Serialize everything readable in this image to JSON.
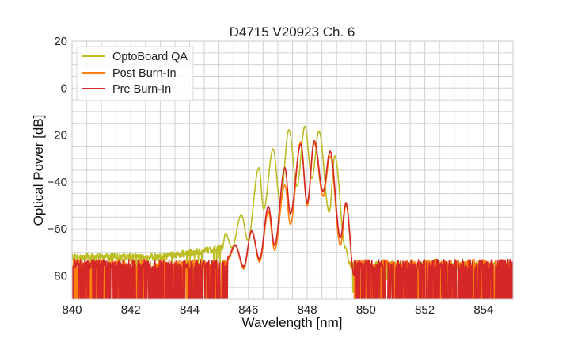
{
  "chart_data": {
    "type": "line",
    "title": "D4715 V20923 Ch. 6",
    "xlabel": "Wavelength [nm]",
    "ylabel": "Optical Power [dB]",
    "xlim": [
      840,
      855
    ],
    "ylim": [
      -90,
      20
    ],
    "xticks": [
      840,
      842,
      844,
      846,
      848,
      850,
      852,
      854
    ],
    "yticks": [
      -80,
      -60,
      -40,
      -20,
      0,
      20
    ],
    "xtick_labels": [
      "840",
      "842",
      "844",
      "846",
      "848",
      "850",
      "852",
      "854"
    ],
    "ytick_labels": [
      "−80",
      "−60",
      "−40",
      "−20",
      "0",
      "20"
    ],
    "grid": true,
    "legend_position": "top-left",
    "series": [
      {
        "name": "OptoBoard QA",
        "color": "#bcbd22",
        "noise_floor_left": [
          840,
          845.1,
          -72
        ],
        "noise_floor_right": [
          849.45,
          855,
          -75.5
        ],
        "points": [
          [
            845.1,
            -69
          ],
          [
            845.22,
            -62
          ],
          [
            845.44,
            -68
          ],
          [
            845.76,
            -54
          ],
          [
            845.98,
            -64.6
          ],
          [
            846.36,
            -34
          ],
          [
            846.52,
            -51.5
          ],
          [
            846.84,
            -26
          ],
          [
            847.08,
            -48.5
          ],
          [
            847.38,
            -17.8
          ],
          [
            847.65,
            -41.7
          ],
          [
            847.92,
            -16.4
          ],
          [
            848.16,
            -38.4
          ],
          [
            848.4,
            -18.4
          ],
          [
            848.75,
            -52.8
          ],
          [
            848.94,
            -29
          ],
          [
            849.3,
            -68
          ],
          [
            849.45,
            -75
          ]
        ]
      },
      {
        "name": "Post Burn-In",
        "color": "#ff7f0e",
        "noise_floor_left": [
          840,
          845.3,
          -75
        ],
        "noise_floor_right": [
          849.6,
          855,
          -75
        ],
        "points": [
          [
            845.3,
            -73
          ],
          [
            845.55,
            -67
          ],
          [
            845.84,
            -77
          ],
          [
            846.11,
            -61
          ],
          [
            846.38,
            -74
          ],
          [
            846.68,
            -52.8
          ],
          [
            846.89,
            -69
          ],
          [
            847.24,
            -41.4
          ],
          [
            847.43,
            -58
          ],
          [
            847.78,
            -23
          ],
          [
            848.0,
            -50
          ],
          [
            848.24,
            -23.5
          ],
          [
            848.54,
            -46
          ],
          [
            848.78,
            -29
          ],
          [
            849.13,
            -67
          ],
          [
            849.32,
            -50
          ],
          [
            849.6,
            -80
          ]
        ]
      },
      {
        "name": "Pre Burn-In",
        "color": "#d62728",
        "noise_floor_left": [
          840,
          845.3,
          -75
        ],
        "noise_floor_right": [
          849.6,
          855,
          -75
        ],
        "points": [
          [
            845.3,
            -72
          ],
          [
            845.55,
            -67
          ],
          [
            845.84,
            -76
          ],
          [
            846.11,
            -61
          ],
          [
            846.38,
            -72.7
          ],
          [
            846.68,
            -50.5
          ],
          [
            846.89,
            -67
          ],
          [
            847.24,
            -34
          ],
          [
            847.43,
            -53.5
          ],
          [
            847.78,
            -24
          ],
          [
            848.0,
            -49
          ],
          [
            848.24,
            -22.5
          ],
          [
            848.54,
            -44
          ],
          [
            848.78,
            -27
          ],
          [
            849.13,
            -63.7
          ],
          [
            849.32,
            -49
          ],
          [
            849.6,
            -80
          ]
        ]
      }
    ]
  }
}
